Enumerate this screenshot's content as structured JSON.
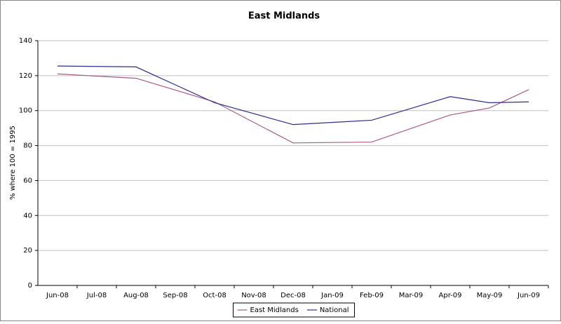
{
  "chart_data": {
    "type": "line",
    "title": "East Midlands",
    "y_label": "% where 100 = 1995",
    "categories": [
      "Jun-08",
      "Jul-08",
      "Aug-08",
      "Sep-08",
      "Oct-08",
      "Nov-08",
      "Dec-08",
      "Jan-09",
      "Feb-09",
      "Mar-09",
      "Apr-09",
      "May-09",
      "Jun-09"
    ],
    "series": [
      {
        "name": "East Midlands",
        "color": "#a85a86",
        "x": [
          "Jun-08",
          "Aug-08",
          "Oct-08",
          "Dec-08",
          "Feb-09",
          "Apr-09",
          "May-09",
          "Jun-09"
        ],
        "values": [
          121,
          118.5,
          105,
          81.5,
          82,
          97.5,
          101.5,
          112
        ]
      },
      {
        "name": "National",
        "color": "#2e2e8a",
        "x": [
          "Jun-08",
          "Aug-08",
          "Oct-08",
          "Dec-08",
          "Feb-09",
          "Apr-09",
          "May-09",
          "Jun-09"
        ],
        "values": [
          125.5,
          125,
          104.5,
          92,
          94.5,
          108,
          104.5,
          105
        ]
      }
    ],
    "ylim": [
      0,
      140
    ],
    "yticks": [
      0,
      20,
      40,
      60,
      80,
      100,
      120,
      140
    ],
    "grid": true,
    "legend": "bottom"
  }
}
